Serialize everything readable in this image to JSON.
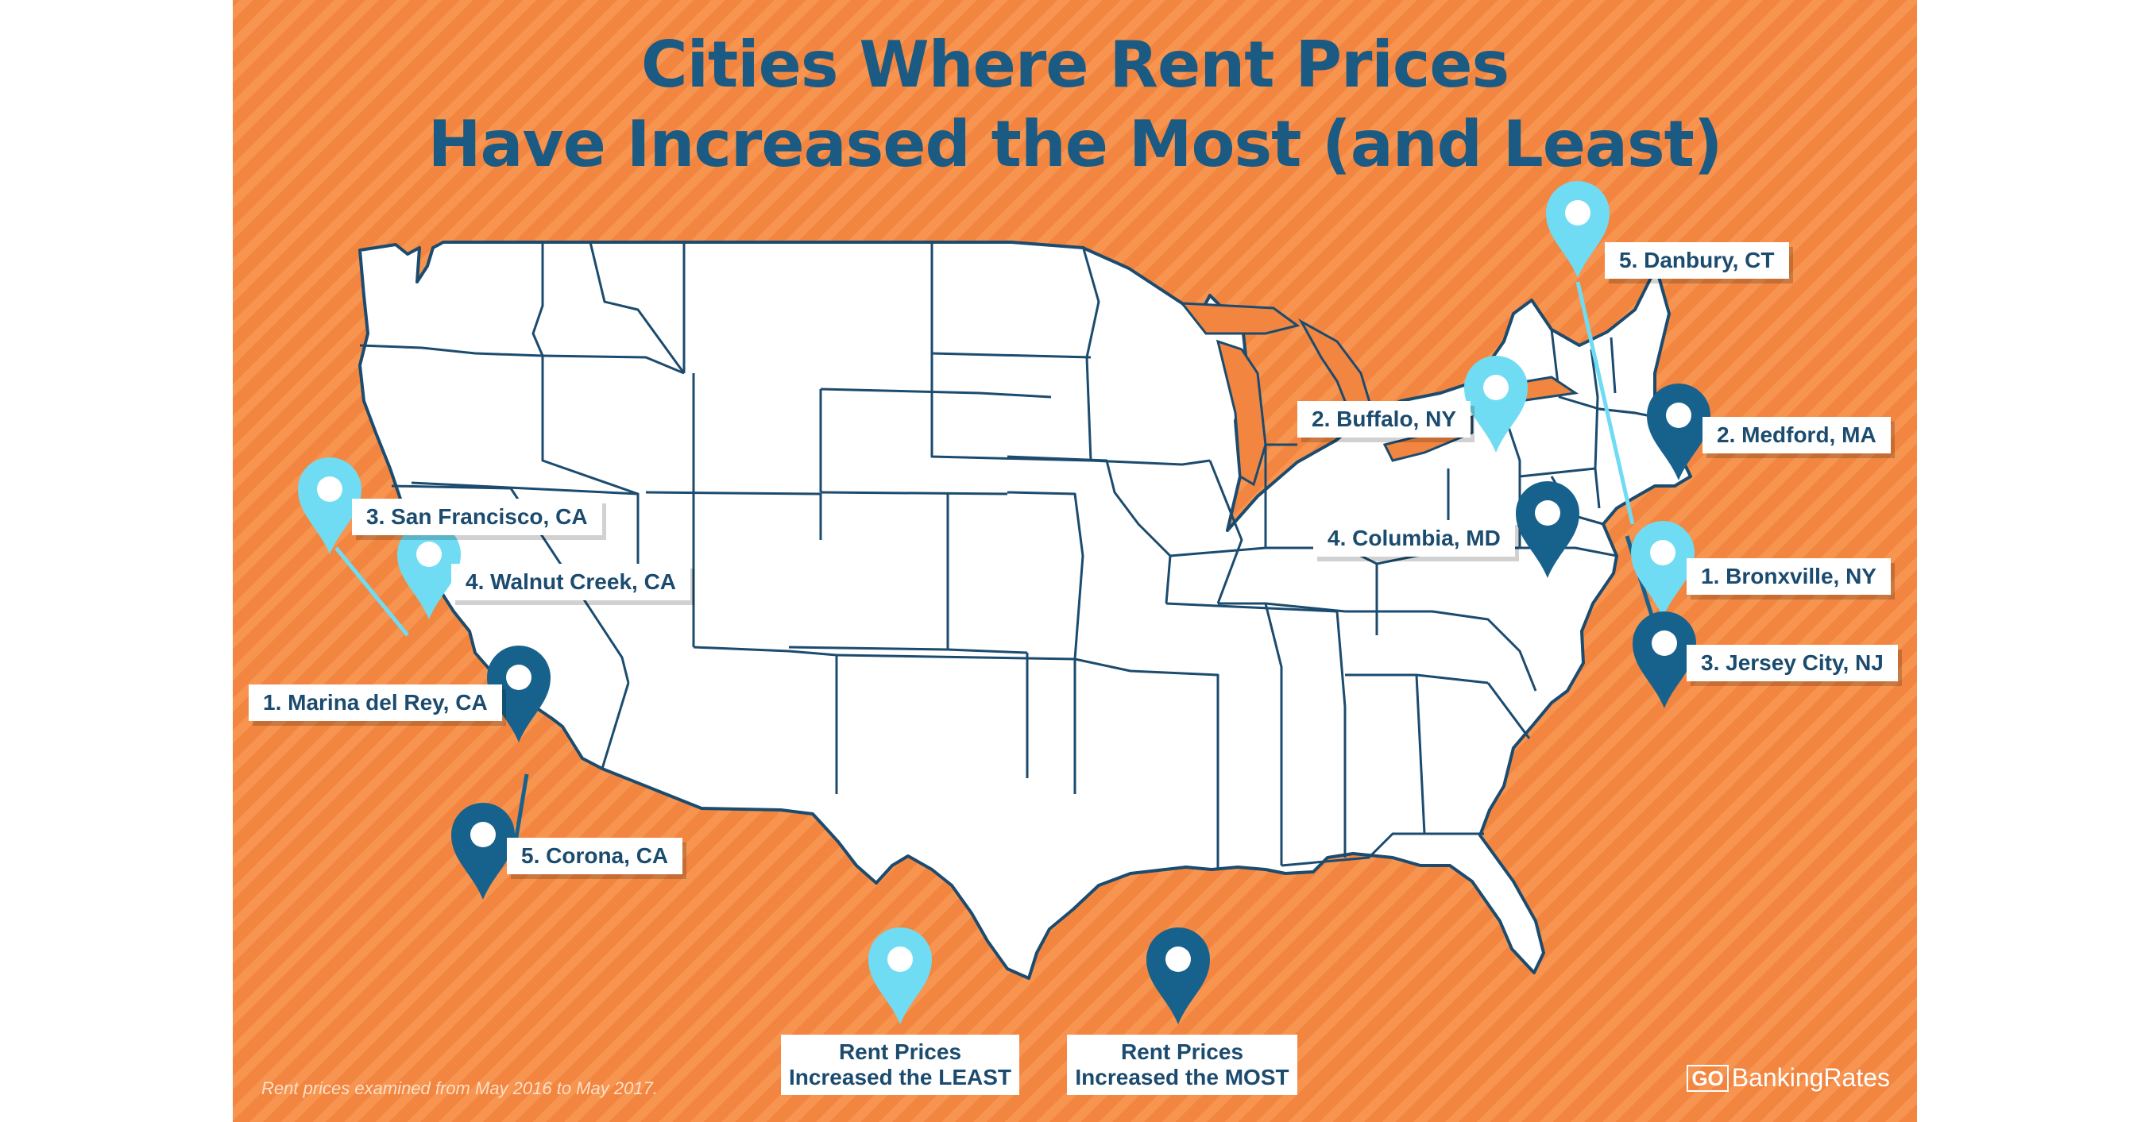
{
  "title": {
    "line1": "Cities Where Rent Prices",
    "line2": "Have Increased the Most (and Least)"
  },
  "colors": {
    "background": "#f28540",
    "title": "#1b5a82",
    "least_pin": "#6fdcf3",
    "most_pin": "#17628d",
    "map_fill": "#ffffff",
    "map_border": "#1b4b6e"
  },
  "pins": [
    {
      "label": "5. Danbury, CT",
      "category": "least",
      "icon": "map-pin-icon"
    },
    {
      "label": "2. Buffalo, NY",
      "category": "least",
      "icon": "map-pin-icon"
    },
    {
      "label": "2. Medford, MA",
      "category": "most",
      "icon": "map-pin-icon"
    },
    {
      "label": "3. San Francisco, CA",
      "category": "least",
      "icon": "map-pin-icon"
    },
    {
      "label": "4. Columbia, MD",
      "category": "most",
      "icon": "map-pin-icon"
    },
    {
      "label": "4. Walnut Creek, CA",
      "category": "least",
      "icon": "map-pin-icon"
    },
    {
      "label": "1. Bronxville, NY",
      "category": "least",
      "icon": "map-pin-icon"
    },
    {
      "label": "3. Jersey City, NJ",
      "category": "most",
      "icon": "map-pin-icon"
    },
    {
      "label": "1. Marina del Rey, CA",
      "category": "most",
      "icon": "map-pin-icon"
    },
    {
      "label": "5. Corona, CA",
      "category": "most",
      "icon": "map-pin-icon"
    }
  ],
  "legend": {
    "least": {
      "line1": "Rent Prices",
      "line2": "Increased the LEAST"
    },
    "most": {
      "line1": "Rent Prices",
      "line2": "Increased the MOST"
    }
  },
  "footnote": "Rent prices examined from May 2016 to May 2017.",
  "brand": {
    "logo_mark": "GO",
    "name": "BankingRates"
  }
}
